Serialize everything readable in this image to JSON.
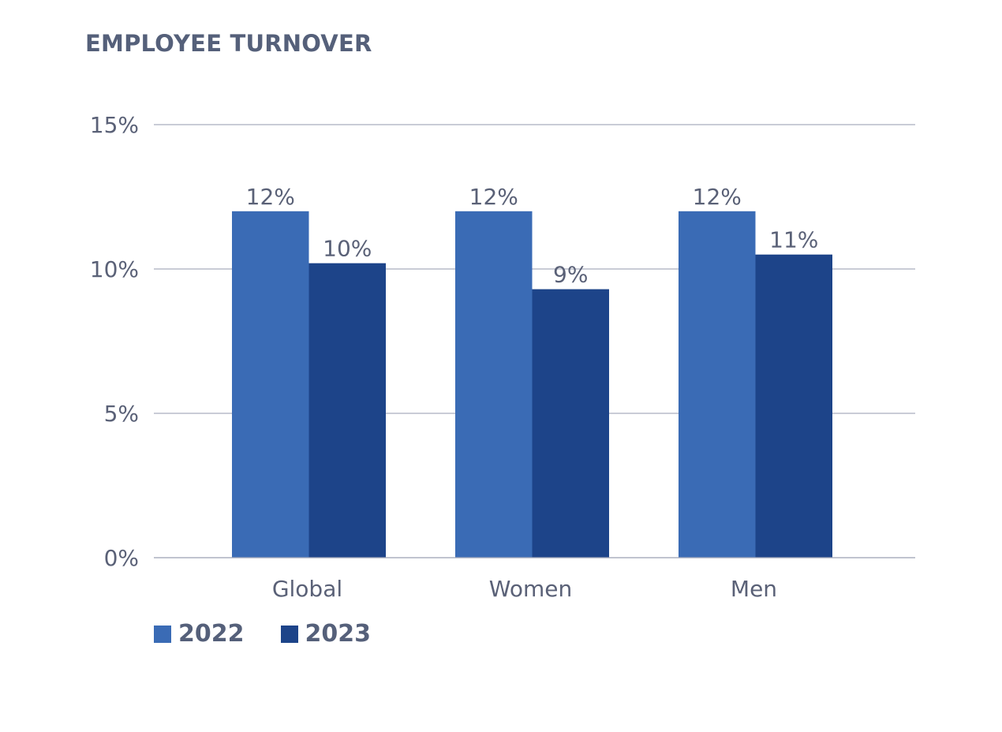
{
  "chart_data": {
    "type": "bar",
    "title": "EMPLOYEE TURNOVER",
    "categories": [
      "Global",
      "Women",
      "Men"
    ],
    "series": [
      {
        "name": "2022",
        "values": [
          12,
          12,
          12
        ],
        "labels": [
          "12%",
          "12%",
          "12%"
        ],
        "color": "#3a6bb5"
      },
      {
        "name": "2023",
        "values": [
          10.2,
          9.3,
          10.5
        ],
        "labels": [
          "10%",
          "9%",
          "11%"
        ],
        "color": "#1d4489"
      }
    ],
    "yticks": [
      0,
      5,
      10,
      15
    ],
    "ytick_labels": [
      "0%",
      "5%",
      "10%",
      "15%"
    ],
    "ylim": [
      0,
      15
    ],
    "xlabel": "",
    "ylabel": "",
    "grid": true,
    "legend_position": "bottom-left"
  }
}
